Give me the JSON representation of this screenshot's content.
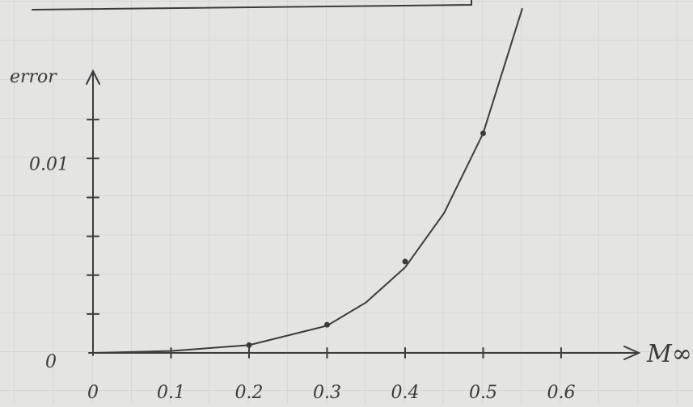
{
  "chart_data": {
    "type": "line",
    "x_label": "M∞",
    "y_label": "error",
    "xlim": [
      0,
      0.7
    ],
    "ylim": [
      0,
      0.0145
    ],
    "xticks": [
      0,
      0.1,
      0.2,
      0.3,
      0.4,
      0.5,
      0.6
    ],
    "yticks": [
      0,
      0.01
    ],
    "minor_yticks": [
      0.002,
      0.004,
      0.006,
      0.008,
      0.012
    ],
    "color": "#3c3c3c",
    "x": [
      0,
      0.1,
      0.2,
      0.3,
      0.35,
      0.4,
      0.45,
      0.5,
      0.55
    ],
    "values": [
      0,
      0.0001,
      0.0004,
      0.0014,
      0.0026,
      0.0044,
      0.0072,
      0.0113,
      0.0177
    ],
    "points": {
      "x": [
        0.2,
        0.3,
        0.4,
        0.5
      ],
      "values": [
        0.0004,
        0.00145,
        0.0047,
        0.0113
      ]
    }
  }
}
